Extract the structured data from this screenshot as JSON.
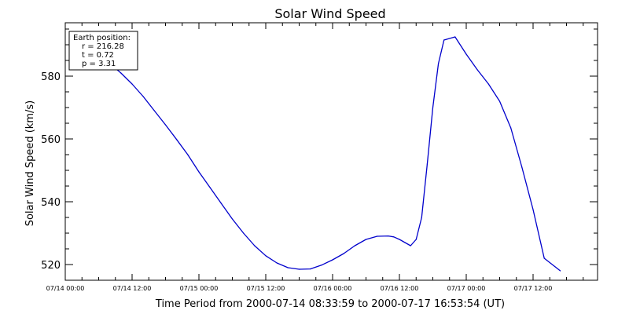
{
  "chart_data": {
    "type": "line",
    "title": "Solar Wind Speed",
    "xlabel": "Time Period from 2000-07-14 08:33:59 to 2000-07-17 16:53:54 (UT)",
    "ylabel": "Solar Wind Speed (km/s)",
    "x_tick_labels": [
      "07/14 00:00",
      "07/14 12:00",
      "07/15 00:00",
      "07/15 12:00",
      "07/16 00:00",
      "07/16 12:00",
      "07/17 00:00",
      "07/17 12:00"
    ],
    "y_tick_labels": [
      "520",
      "540",
      "560",
      "580"
    ],
    "grid": false,
    "line_color": "#0000cc",
    "annotation": {
      "heading": "Earth position:",
      "lines": [
        "r = 216.28",
        "t = 0.72",
        "p = 3.31"
      ]
    },
    "series": [
      {
        "x": [
          "2000-07-14 08:33",
          "2000-07-14 10:00",
          "2000-07-14 12:00",
          "2000-07-14 14:00",
          "2000-07-14 16:00",
          "2000-07-14 18:00",
          "2000-07-14 20:00",
          "2000-07-14 22:00",
          "2000-07-15 00:00",
          "2000-07-15 02:00",
          "2000-07-15 04:00",
          "2000-07-15 06:00",
          "2000-07-15 08:00",
          "2000-07-15 10:00",
          "2000-07-15 12:00",
          "2000-07-15 14:00",
          "2000-07-15 16:00",
          "2000-07-15 18:00",
          "2000-07-15 20:00",
          "2000-07-15 22:00",
          "2000-07-16 00:00",
          "2000-07-16 02:00",
          "2000-07-16 04:00",
          "2000-07-16 06:00",
          "2000-07-16 08:00",
          "2000-07-16 10:00",
          "2000-07-16 11:00",
          "2000-07-16 12:00",
          "2000-07-16 13:00",
          "2000-07-16 14:00",
          "2000-07-16 15:00",
          "2000-07-16 16:00",
          "2000-07-16 17:00",
          "2000-07-16 18:00",
          "2000-07-16 19:00",
          "2000-07-16 20:00",
          "2000-07-16 22:00",
          "2000-07-17 00:00",
          "2000-07-17 02:00",
          "2000-07-17 04:00",
          "2000-07-17 06:00",
          "2000-07-17 08:00",
          "2000-07-17 10:00",
          "2000-07-17 12:00",
          "2000-07-17 14:00",
          "2000-07-17 16:53"
        ],
        "y": [
          583.2,
          581.0,
          577.5,
          573.5,
          569.0,
          564.5,
          559.8,
          555.0,
          549.5,
          544.5,
          539.5,
          534.5,
          530.0,
          526.0,
          522.8,
          520.5,
          519.0,
          518.5,
          518.6,
          519.8,
          521.5,
          523.5,
          526.0,
          528.0,
          529.0,
          529.1,
          528.8,
          528.0,
          527.0,
          526.0,
          528.0,
          535.0,
          552.0,
          570.0,
          584.0,
          591.5,
          592.5,
          587.0,
          582.0,
          577.5,
          572.0,
          563.5,
          551.0,
          537.5,
          522.0,
          518.0
        ]
      }
    ]
  }
}
